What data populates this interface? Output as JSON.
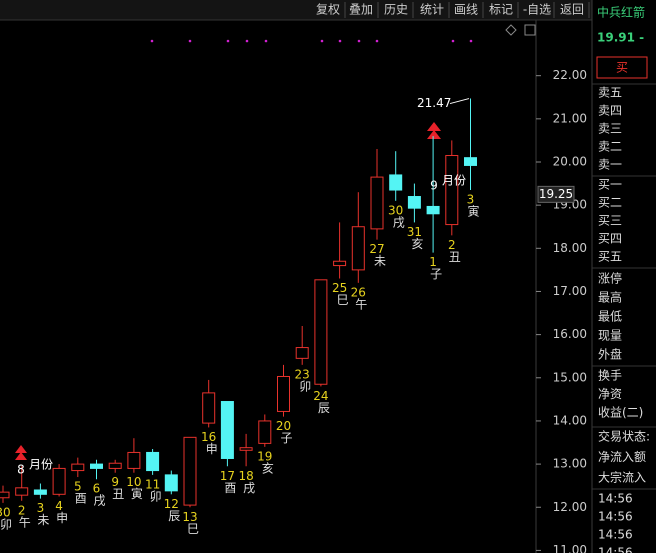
{
  "toolbar": [
    "复权",
    "叠加",
    "历史",
    "统计",
    "画线",
    "标记",
    "-自选",
    "返回"
  ],
  "chart_data": {
    "type": "candlestick",
    "categories": [
      "30",
      "2",
      "3",
      "4",
      "5",
      "6",
      "9",
      "10",
      "11",
      "12",
      "13",
      "16",
      "17",
      "18",
      "19",
      "20",
      "23",
      "24",
      "25",
      "26",
      "27",
      "30",
      "31",
      "1",
      "2",
      "3"
    ],
    "branch_labels": [
      "卯",
      "午",
      "未",
      "申",
      "酉",
      "戌",
      "丑",
      "寅",
      "卯",
      "辰",
      "巳",
      "申",
      "酉",
      "戌",
      "亥",
      "子",
      "卯",
      "辰",
      "巳",
      "午",
      "未",
      "戌",
      "亥",
      "子",
      "丑",
      "寅"
    ],
    "open": [
      12.22,
      12.28,
      12.4,
      12.3,
      12.85,
      13.0,
      12.9,
      12.9,
      13.27,
      12.75,
      12.05,
      13.95,
      14.45,
      13.32,
      13.48,
      14.22,
      15.45,
      14.85,
      17.6,
      17.5,
      18.45,
      19.7,
      19.2,
      18.97,
      18.55,
      20.1
    ],
    "high": [
      12.5,
      12.95,
      12.55,
      13.0,
      13.15,
      13.1,
      13.1,
      13.6,
      13.35,
      12.85,
      13.62,
      14.95,
      14.45,
      13.7,
      14.15,
      15.3,
      16.2,
      17.27,
      18.6,
      19.3,
      20.3,
      20.25,
      19.5,
      20.6,
      20.5,
      21.47
    ],
    "low": [
      12.1,
      12.15,
      12.2,
      12.25,
      12.7,
      12.65,
      12.8,
      12.8,
      12.75,
      12.3,
      12.0,
      13.85,
      12.95,
      12.95,
      13.4,
      14.1,
      15.3,
      14.8,
      17.3,
      17.2,
      18.2,
      19.1,
      18.6,
      17.9,
      18.3,
      19.35
    ],
    "close": [
      12.35,
      12.45,
      12.3,
      12.9,
      13.0,
      12.9,
      13.02,
      13.27,
      12.85,
      12.38,
      13.62,
      14.65,
      13.13,
      13.38,
      14.0,
      15.03,
      15.7,
      17.27,
      17.7,
      18.5,
      19.65,
      19.35,
      18.93,
      18.8,
      20.15,
      19.92
    ],
    "ylim": [
      10.94,
      23.29
    ],
    "yticks": [
      {
        "value": 11,
        "label": "11.00"
      },
      {
        "value": 12,
        "label": "12.00"
      },
      {
        "value": 13,
        "label": "13.00"
      },
      {
        "value": 14,
        "label": "14.00"
      },
      {
        "value": 15,
        "label": "15.00"
      },
      {
        "value": 16,
        "label": "16.00"
      },
      {
        "value": 17,
        "label": "17.00"
      },
      {
        "value": 18,
        "label": "18.00"
      },
      {
        "value": 19,
        "label": "19.00"
      },
      {
        "value": 20,
        "label": "20.00"
      },
      {
        "value": 21,
        "label": "21.00"
      },
      {
        "value": 22,
        "label": "22.00"
      }
    ],
    "last_price": 19.25,
    "up_color": "#e8322c",
    "down_color": "#54f4f4",
    "month_marks": [
      {
        "num": "8",
        "text": "月份"
      },
      {
        "num": "9",
        "text": "月份"
      }
    ],
    "high_label": "21.47"
  },
  "side_panel": {
    "name": "中兵红箭",
    "price": "19.91 -",
    "buy_button": "买",
    "ask": [
      "卖五",
      "卖四",
      "卖三",
      "卖二",
      "卖一"
    ],
    "bid": [
      "买一",
      "买二",
      "买三",
      "买四",
      "买五"
    ],
    "stats": [
      "涨停",
      "最高",
      "最低",
      "现量",
      "外盘"
    ],
    "finance": [
      "换手",
      "净资",
      "收益(二)"
    ],
    "flow": [
      "交易状态:",
      "净流入额",
      "大宗流入"
    ],
    "ticks": [
      "14:56",
      "14:56",
      "14:56",
      "14:56"
    ]
  }
}
